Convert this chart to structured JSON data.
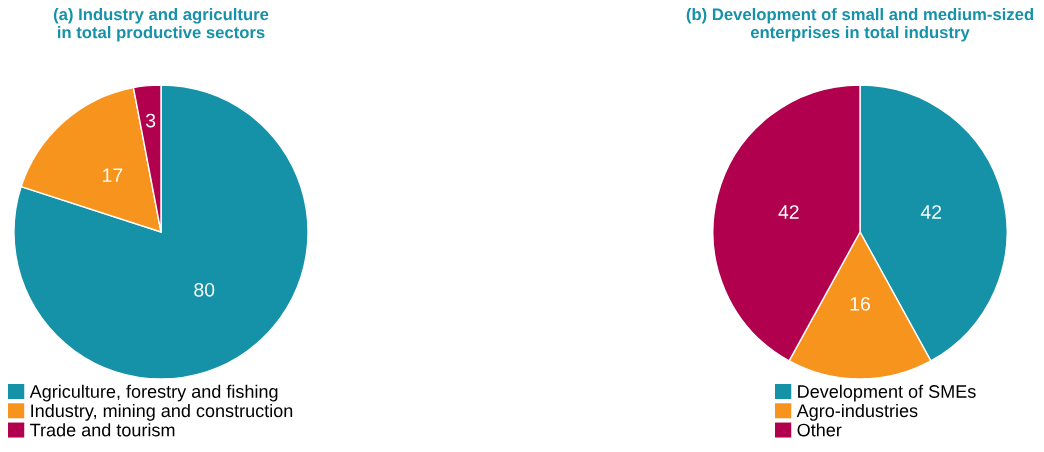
{
  "chart_data": [
    {
      "type": "pie",
      "title": "(a) Industry and agriculture\nin total productive sectors",
      "categories": [
        "Agriculture, forestry and fishing",
        "Industry, mining and construction",
        "Trade and tourism"
      ],
      "values": [
        80,
        17,
        3
      ],
      "colors": [
        "#1591a8",
        "#f7941d",
        "#b0004e"
      ],
      "data_labels": true,
      "legend": "bottom"
    },
    {
      "type": "pie",
      "title": "(b) Development of small and medium-sized\nenterprises in total industry",
      "categories": [
        "Development of SMEs",
        "Agro-industries",
        "Other"
      ],
      "values": [
        42,
        16,
        42
      ],
      "colors": [
        "#1591a8",
        "#f7941d",
        "#b0004e"
      ],
      "data_labels": true,
      "legend": "bottom"
    }
  ]
}
